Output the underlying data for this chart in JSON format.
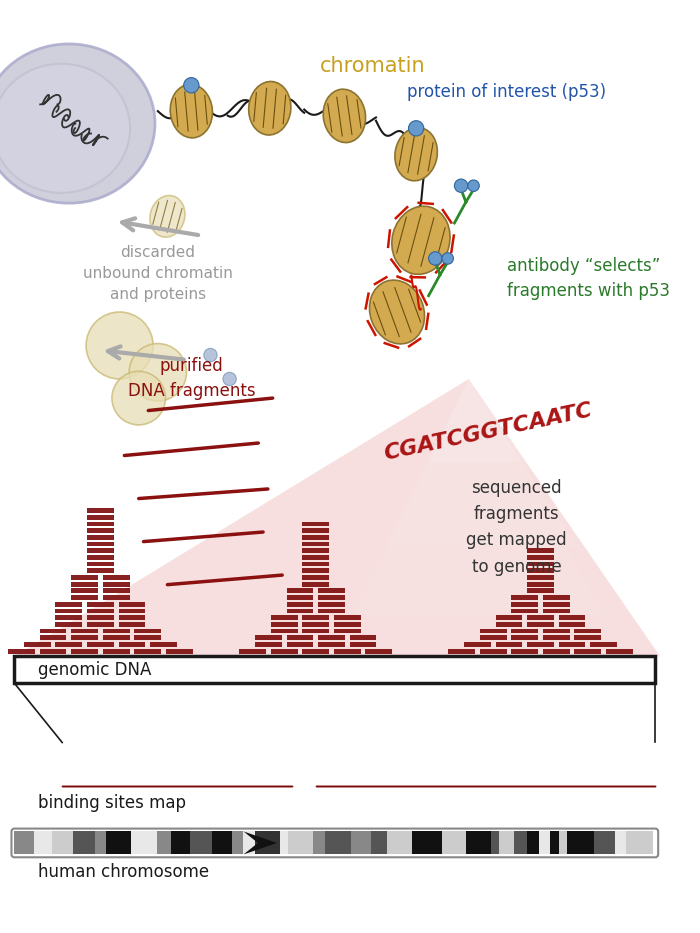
{
  "bg_color": "#ffffff",
  "chromatin_color": "#D4AA50",
  "chromatin_label_color": "#C8A020",
  "p53_label_color": "#2255AA",
  "antibody_label_color": "#2A7A2A",
  "dna_frag_color": "#8B1010",
  "seq_text_color": "#AA1515",
  "read_color": "#7B0A0A",
  "label_gray": "#999999",
  "title_chromatin": "chromatin",
  "title_p53": "protein of interest (p53)",
  "title_antibody": "antibody “selects”\nfragments with p53",
  "title_discarded": "discarded\nunbound chromatin\nand proteins",
  "title_purified": "purified\nDNA fragments",
  "title_seq": "sequenced\nfragments\nget mapped\nto genome",
  "title_seq_dna": "CGATCGGTCAATC",
  "title_genomic": "genomic DNA",
  "title_binding": "binding sites map",
  "title_chromosome": "human chromosome",
  "pink_bg": "#F5CECE"
}
